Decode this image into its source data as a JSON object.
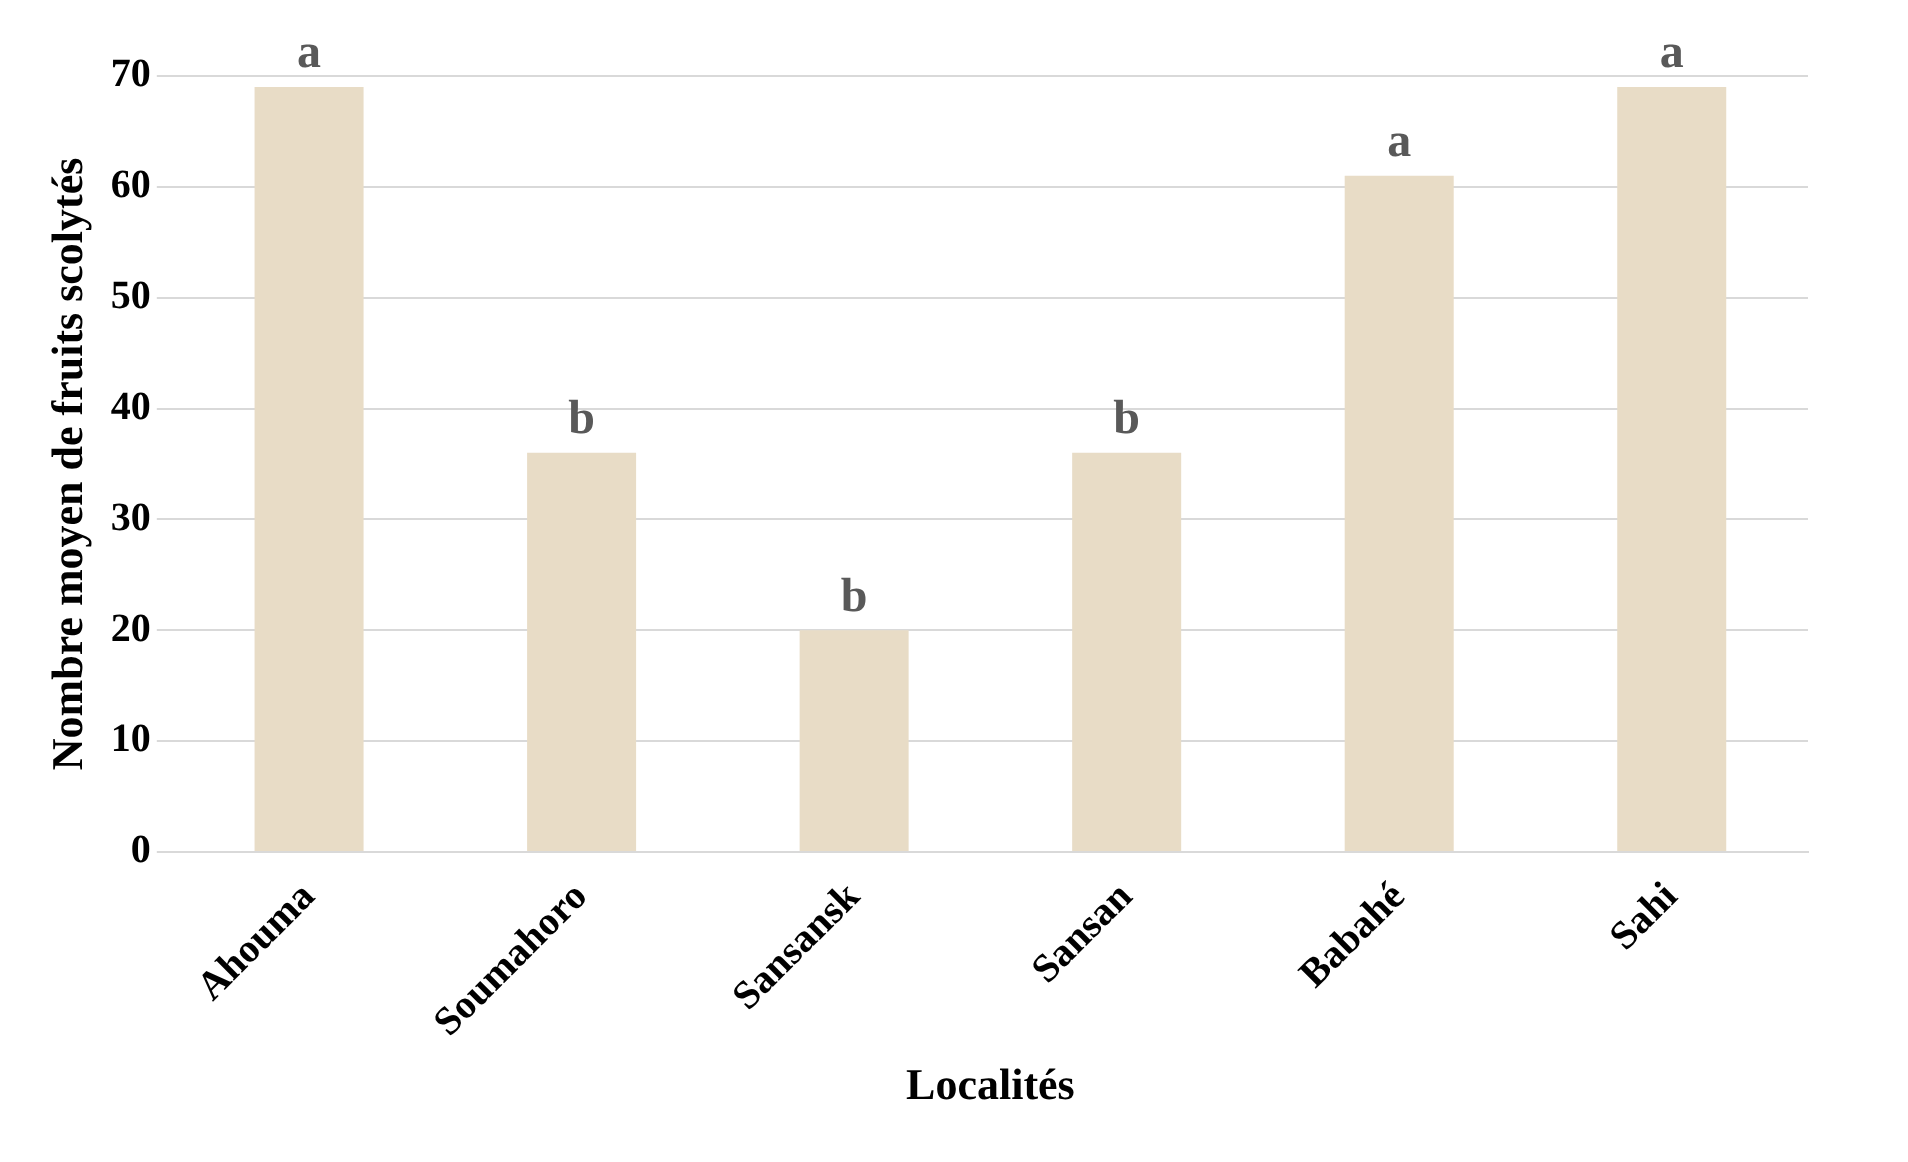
{
  "chart_data": {
    "type": "bar",
    "xlabel": "Localités",
    "ylabel": "Nombre moyen de fruits scolytés",
    "categories": [
      "Ahouma",
      "Soumahoro",
      "Sansansk",
      "Sansan",
      "Babahé",
      "Sahi"
    ],
    "values": [
      69,
      36,
      20,
      36,
      61,
      69
    ],
    "color": "#e8dcc6",
    "ylim": [
      0,
      70
    ],
    "yticks": [
      0,
      10,
      20,
      30,
      40,
      50,
      60,
      70
    ],
    "grid": "y",
    "legend": false,
    "annotations": [
      {
        "text": "a",
        "x": "Ahouma",
        "y": 69
      },
      {
        "text": "b",
        "x": "Soumahoro",
        "y": 36
      },
      {
        "text": "b",
        "x": "Sansansk",
        "y": 20
      },
      {
        "text": "b",
        "x": "Sansan",
        "y": 36
      },
      {
        "text": "a",
        "x": "Babahé",
        "y": 61
      },
      {
        "text": "a",
        "x": "Sahi",
        "y": 69
      }
    ]
  }
}
